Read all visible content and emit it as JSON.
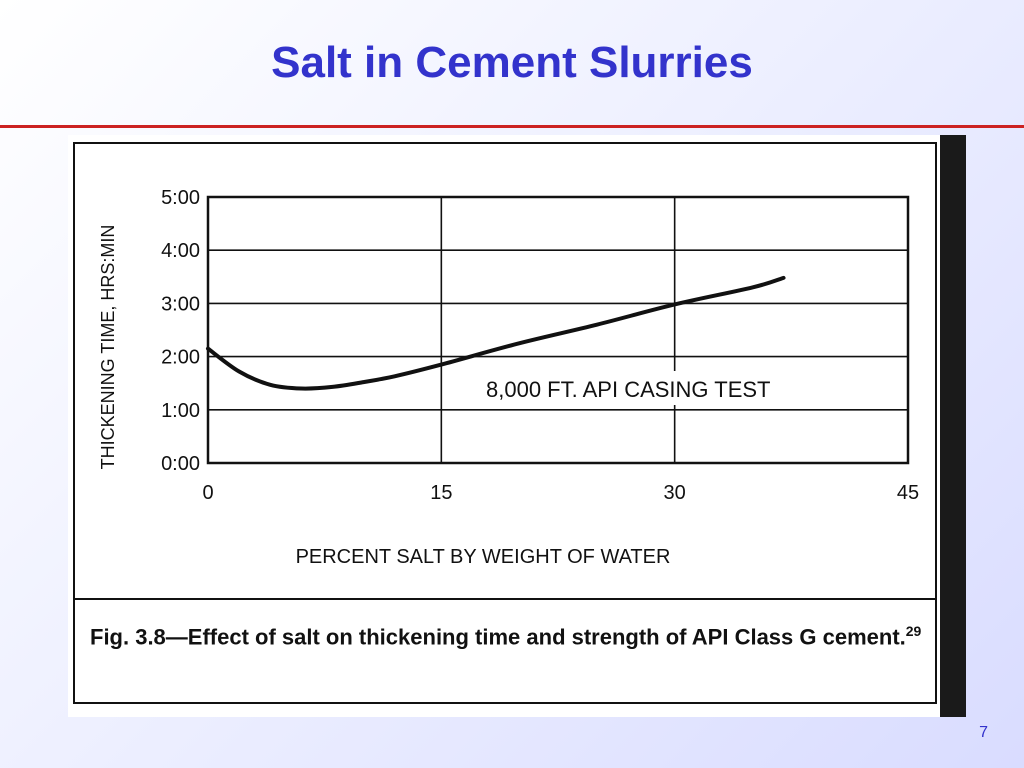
{
  "slide": {
    "title": "Salt in Cement Slurries",
    "page_number": "7",
    "colors": {
      "title": "#3333cc",
      "rule": "#cc2222",
      "page_number": "#3333cc"
    }
  },
  "chart_data": {
    "type": "line",
    "xlabel": "PERCENT SALT BY WEIGHT OF WATER",
    "ylabel": "THICKENING TIME, HRS:MIN",
    "xlim": [
      0,
      45
    ],
    "ylim": [
      0,
      5
    ],
    "x_ticks": [
      0,
      15,
      30,
      45
    ],
    "x_tick_labels": [
      "0",
      "15",
      "30",
      "45"
    ],
    "y_ticks": [
      0,
      1,
      2,
      3,
      4,
      5
    ],
    "y_tick_labels": [
      "0:00",
      "1:00",
      "2:00",
      "3:00",
      "4:00",
      "5:00"
    ],
    "grid": true,
    "series": [
      {
        "x": [
          0,
          2,
          4,
          6,
          8,
          10,
          12,
          15,
          20,
          25,
          30,
          35,
          37
        ],
        "y": [
          2.15,
          1.72,
          1.47,
          1.4,
          1.43,
          1.52,
          1.63,
          1.85,
          2.25,
          2.6,
          2.98,
          3.3,
          3.48
        ]
      }
    ],
    "annotation": "8,000 FT. API CASING TEST",
    "caption_main": "Fig. 3.8—Effect of salt on thickening time and strength of API Class G cement.",
    "caption_ref": "29"
  }
}
